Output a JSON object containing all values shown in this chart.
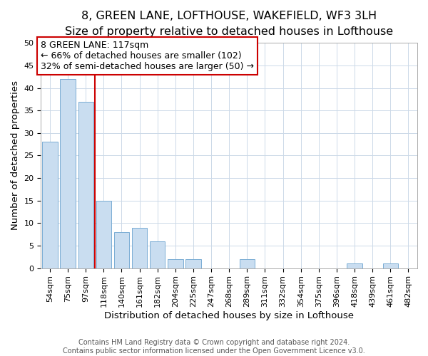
{
  "title": "8, GREEN LANE, LOFTHOUSE, WAKEFIELD, WF3 3LH",
  "subtitle": "Size of property relative to detached houses in Lofthouse",
  "xlabel": "Distribution of detached houses by size in Lofthouse",
  "ylabel": "Number of detached properties",
  "bar_labels": [
    "54sqm",
    "75sqm",
    "97sqm",
    "118sqm",
    "140sqm",
    "161sqm",
    "182sqm",
    "204sqm",
    "225sqm",
    "247sqm",
    "268sqm",
    "289sqm",
    "311sqm",
    "332sqm",
    "354sqm",
    "375sqm",
    "396sqm",
    "418sqm",
    "439sqm",
    "461sqm",
    "482sqm"
  ],
  "bar_heights": [
    28,
    42,
    37,
    15,
    8,
    9,
    6,
    2,
    2,
    0,
    0,
    2,
    0,
    0,
    0,
    0,
    0,
    1,
    0,
    1,
    0
  ],
  "bar_color": "#c9ddf0",
  "bar_edge_color": "#7aadd4",
  "vline_color": "#cc0000",
  "ylim": [
    0,
    50
  ],
  "yticks": [
    0,
    5,
    10,
    15,
    20,
    25,
    30,
    35,
    40,
    45,
    50
  ],
  "annotation_title": "8 GREEN LANE: 117sqm",
  "annotation_line1": "← 66% of detached houses are smaller (102)",
  "annotation_line2": "32% of semi-detached houses are larger (50) →",
  "footer_line1": "Contains HM Land Registry data © Crown copyright and database right 2024.",
  "footer_line2": "Contains public sector information licensed under the Open Government Licence v3.0.",
  "title_fontsize": 11.5,
  "subtitle_fontsize": 10,
  "axis_label_fontsize": 9.5,
  "tick_fontsize": 8,
  "annotation_fontsize": 9,
  "footer_fontsize": 7
}
